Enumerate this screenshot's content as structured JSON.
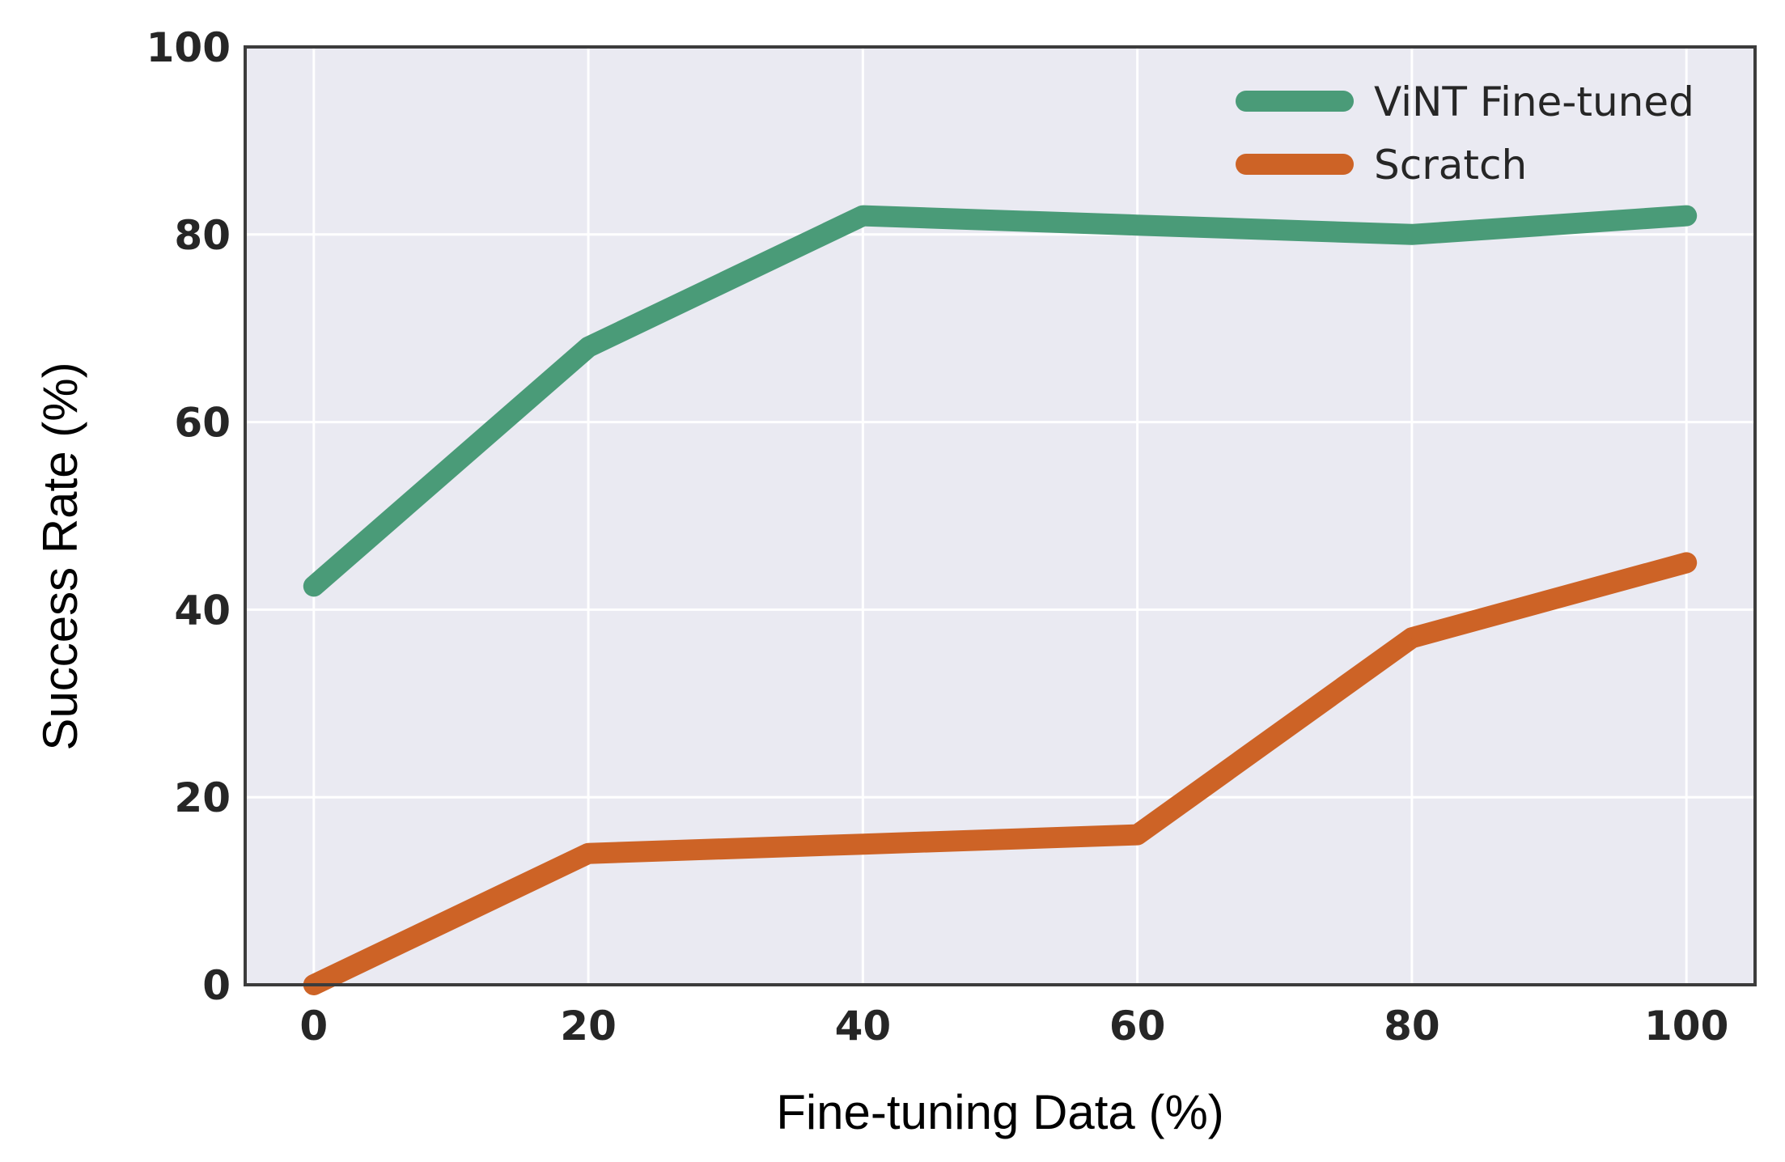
{
  "chart_data": {
    "type": "line",
    "title": "",
    "xlabel": "Fine-tuning Data (%)",
    "ylabel": "Success Rate (%)",
    "x": [
      0,
      20,
      40,
      60,
      80,
      100
    ],
    "xticks": [
      0,
      20,
      40,
      60,
      80,
      100
    ],
    "yticks": [
      0,
      20,
      40,
      60,
      80,
      100
    ],
    "xlim": [
      -5,
      105
    ],
    "ylim": [
      0,
      100
    ],
    "grid": true,
    "legend_position": "top-right",
    "background_color": "#eaeaf2",
    "series": [
      {
        "name": "ViNT Fine-tuned",
        "color": "#4a9b78",
        "values": [
          42.5,
          68,
          82,
          81,
          80,
          82
        ]
      },
      {
        "name": "Scratch",
        "color": "#cd6326",
        "values": [
          0,
          14,
          15,
          16,
          37,
          45
        ]
      }
    ]
  }
}
